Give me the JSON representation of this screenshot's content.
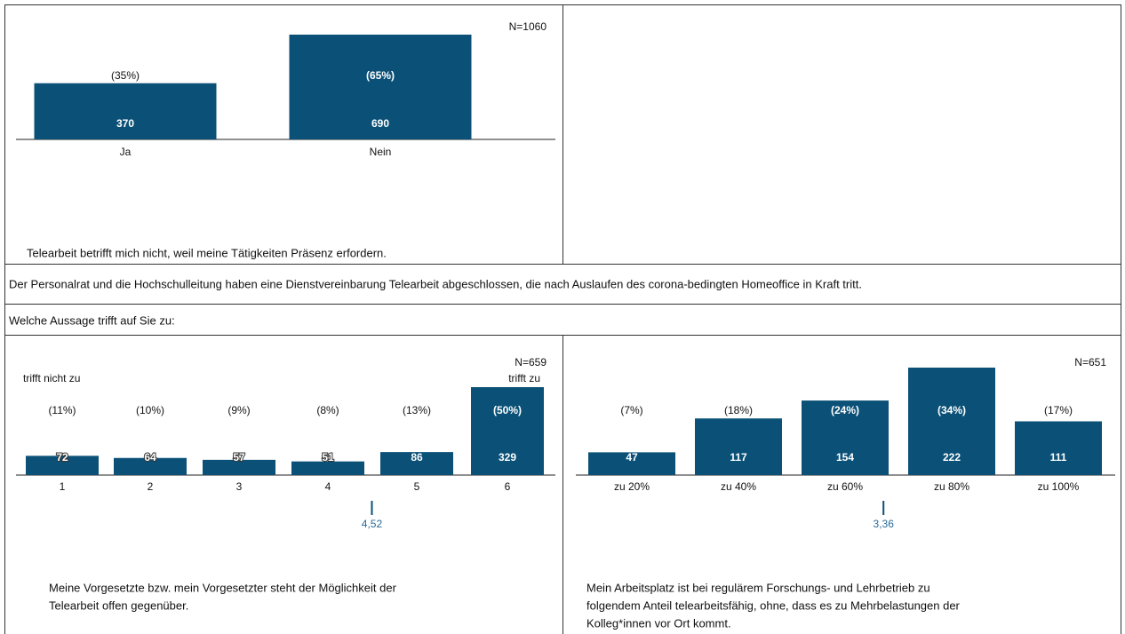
{
  "intro": "Der Personalrat und die Hochschulleitung haben eine Dienstvereinbarung Telearbeit abgeschlossen, die nach Auslaufen des corona-bedingten Homeoffice in Kraft tritt.",
  "question": "Welche Aussage trifft auf Sie zu:",
  "chart_data": [
    {
      "type": "bar",
      "n_label": "N=1060",
      "caption": [
        "Telearbeit betrifft mich nicht, weil meine Tätigkeiten Präsenz erfordern."
      ],
      "categories": [
        "Ja",
        "Nein"
      ],
      "values": [
        370,
        690
      ],
      "percents": [
        35,
        65
      ],
      "percent_labels": [
        "(35%)",
        "(65%)"
      ],
      "color": "#0b5177"
    },
    {
      "type": "bar",
      "n_label": "N=659",
      "scale_labels": [
        "trifft nicht zu",
        "trifft zu"
      ],
      "caption": [
        "Meine Vorgesetzte bzw. mein Vorgesetzter steht der Möglichkeit der",
        "Telearbeit offen gegenüber."
      ],
      "categories": [
        "1",
        "2",
        "3",
        "4",
        "5",
        "6"
      ],
      "values": [
        72,
        64,
        57,
        51,
        86,
        329
      ],
      "percents": [
        11,
        10,
        9,
        8,
        13,
        50
      ],
      "percent_labels": [
        "(11%)",
        "(10%)",
        "(9%)",
        "(8%)",
        "(13%)",
        "(50%)"
      ],
      "mean": {
        "value": 4.52,
        "label": "4,52"
      },
      "color": "#0b5177"
    },
    {
      "type": "bar",
      "n_label": "N=651",
      "caption": [
        "Mein Arbeitsplatz ist bei regulärem Forschungs- und Lehrbetrieb zu",
        "folgendem Anteil telearbeitsfähig, ohne, dass es zu Mehrbelastungen der",
        "Kolleg*innen vor Ort kommt."
      ],
      "categories": [
        "zu 20%",
        "zu 40%",
        "zu 60%",
        "zu 80%",
        "zu 100%"
      ],
      "values": [
        47,
        117,
        154,
        222,
        111
      ],
      "percents": [
        7,
        18,
        24,
        34,
        17
      ],
      "percent_labels": [
        "(7%)",
        "(18%)",
        "(24%)",
        "(34%)",
        "(17%)"
      ],
      "mean": {
        "value": 3.36,
        "label": "3,36"
      },
      "color": "#0b5177"
    }
  ]
}
